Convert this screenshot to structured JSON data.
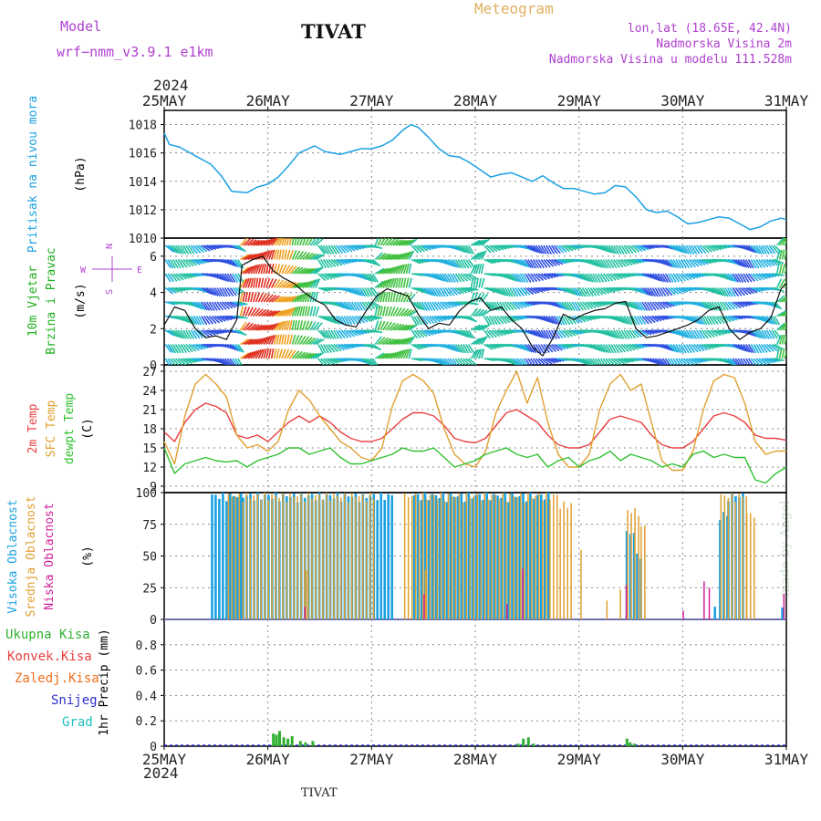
{
  "header": {
    "model_label": "Model",
    "model_name": "wrf−nmm_v3.9.1  e1km",
    "station": "TIVAT",
    "product": "Meteogram",
    "coords": "lon,lat (18.65E, 42.4N)",
    "elevation": "Nadmorska Visina 2m",
    "model_elevation": "Nadmorska Visina u modelu 111.528m",
    "year_top": "2024",
    "year_bottom": "2024",
    "footer_station": "TIVAT",
    "watermark": "made by Angel"
  },
  "colors": {
    "pressure": "#1ba1e2",
    "temp2m": "#e84040",
    "sfc": "#e0a030",
    "dewpt": "#30c030",
    "high_cloud": "#1ba1e2",
    "mid_cloud": "#e0a030",
    "low_cloud": "#d0209a",
    "total_precip": "#30b030",
    "conv_precip": "#e84040",
    "frozen": "#f07020",
    "snow": "#3030d0",
    "graupel": "#20c0c0",
    "magenta": "#b040d0",
    "grid": "#888888"
  },
  "chart_data": [
    {
      "type": "line",
      "panel": "pressure",
      "title": "Pritisak na nivou mora",
      "ylabel": "(hPa)",
      "categories": [
        "25MAY",
        "26MAY",
        "27MAY",
        "28MAY",
        "29MAY",
        "30MAY",
        "31MAY"
      ],
      "ylim": [
        1010,
        1019
      ],
      "yticks": [
        1010,
        1012,
        1014,
        1016,
        1018
      ],
      "series": [
        {
          "name": "",
          "x": [
            0,
            0.05,
            0.15,
            0.3,
            0.45,
            0.55,
            0.65,
            0.8,
            0.9,
            1.0,
            1.1,
            1.2,
            1.3,
            1.45,
            1.55,
            1.7,
            1.8,
            1.9,
            2.0,
            2.1,
            2.2,
            2.3,
            2.38,
            2.45,
            2.55,
            2.65,
            2.75,
            2.85,
            2.95,
            3.05,
            3.15,
            3.25,
            3.35,
            3.45,
            3.55,
            3.65,
            3.75,
            3.85,
            3.95,
            4.05,
            4.15,
            4.25,
            4.35,
            4.45,
            4.55,
            4.65,
            4.75,
            4.85,
            4.95,
            5.05,
            5.15,
            5.25,
            5.35,
            5.45,
            5.55,
            5.65,
            5.75,
            5.85,
            5.95,
            6.0
          ],
          "y": [
            1017.4,
            1016.6,
            1016.4,
            1015.8,
            1015.2,
            1014.4,
            1013.3,
            1013.2,
            1013.6,
            1013.8,
            1014.3,
            1015.1,
            1016.0,
            1016.5,
            1016.1,
            1015.9,
            1016.1,
            1016.3,
            1016.3,
            1016.5,
            1016.9,
            1017.6,
            1018.0,
            1017.8,
            1017.1,
            1016.3,
            1015.8,
            1015.7,
            1015.3,
            1014.8,
            1014.3,
            1014.5,
            1014.6,
            1014.3,
            1014.0,
            1014.4,
            1013.9,
            1013.5,
            1013.5,
            1013.3,
            1013.1,
            1013.2,
            1013.7,
            1013.6,
            1012.9,
            1012.0,
            1011.8,
            1011.9,
            1011.5,
            1011.0,
            1011.1,
            1011.3,
            1011.5,
            1011.4,
            1011.0,
            1010.6,
            1010.8,
            1011.2,
            1011.4,
            1011.3
          ]
        }
      ]
    },
    {
      "type": "line",
      "panel": "wind",
      "title": "10m Vjetar Brzina i Pravac",
      "ylabel": "(m/s)",
      "compass": {
        "north": "N",
        "west": "W",
        "east": "E",
        "south": "S"
      },
      "categories": [
        "25MAY",
        "26MAY",
        "27MAY",
        "28MAY",
        "29MAY",
        "30MAY",
        "31MAY"
      ],
      "ylim": [
        0,
        7
      ],
      "yticks": [
        0,
        2,
        4,
        6
      ],
      "series": [
        {
          "name": "",
          "x": [
            0,
            0.1,
            0.2,
            0.3,
            0.4,
            0.5,
            0.6,
            0.7,
            0.75,
            0.85,
            0.95,
            1.05,
            1.15,
            1.25,
            1.35,
            1.45,
            1.55,
            1.65,
            1.75,
            1.85,
            1.95,
            2.05,
            2.15,
            2.25,
            2.35,
            2.45,
            2.55,
            2.65,
            2.75,
            2.85,
            2.95,
            3.05,
            3.15,
            3.25,
            3.35,
            3.45,
            3.55,
            3.65,
            3.75,
            3.85,
            3.95,
            4.05,
            4.15,
            4.25,
            4.35,
            4.45,
            4.55,
            4.65,
            4.75,
            4.85,
            4.95,
            5.05,
            5.15,
            5.25,
            5.35,
            5.45,
            5.55,
            5.65,
            5.75,
            5.85,
            5.95,
            6.0
          ],
          "y": [
            2.2,
            3.2,
            3.0,
            2.0,
            1.5,
            1.6,
            1.4,
            2.5,
            5.5,
            5.8,
            6.0,
            5.2,
            4.8,
            4.5,
            4.0,
            3.6,
            3.3,
            2.5,
            2.2,
            2.1,
            3.0,
            3.8,
            4.2,
            4.0,
            3.8,
            2.8,
            2.0,
            2.3,
            2.2,
            3.0,
            3.5,
            3.7,
            3.0,
            3.2,
            2.5,
            2.0,
            1.0,
            0.5,
            1.5,
            2.8,
            2.5,
            2.8,
            3.0,
            3.1,
            3.4,
            3.5,
            2.0,
            1.5,
            1.6,
            1.8,
            2.0,
            2.2,
            2.5,
            3.0,
            3.2,
            2.0,
            1.4,
            1.8,
            2.0,
            2.6,
            4.2,
            4.5
          ]
        }
      ]
    },
    {
      "type": "line",
      "panel": "temperature",
      "ylabel": "(C)",
      "labels": [
        "2m Temp",
        "SFC Temp",
        "dewpt Temp"
      ],
      "categories": [
        "25MAY",
        "26MAY",
        "27MAY",
        "28MAY",
        "29MAY",
        "30MAY",
        "31MAY"
      ],
      "ylim": [
        8,
        28
      ],
      "yticks": [
        9,
        12,
        15,
        18,
        21,
        24,
        27
      ],
      "x": [
        0,
        0.1,
        0.2,
        0.3,
        0.4,
        0.5,
        0.6,
        0.7,
        0.8,
        0.9,
        1.0,
        1.1,
        1.2,
        1.3,
        1.4,
        1.5,
        1.6,
        1.7,
        1.8,
        1.9,
        2.0,
        2.1,
        2.2,
        2.3,
        2.4,
        2.5,
        2.6,
        2.7,
        2.8,
        2.9,
        3.0,
        3.1,
        3.2,
        3.3,
        3.4,
        3.5,
        3.6,
        3.7,
        3.8,
        3.9,
        4.0,
        4.1,
        4.2,
        4.3,
        4.4,
        4.5,
        4.6,
        4.7,
        4.8,
        4.9,
        5.0,
        5.1,
        5.2,
        5.3,
        5.4,
        5.5,
        5.6,
        5.7,
        5.8,
        5.9,
        6.0
      ],
      "series": [
        {
          "name": "2m Temp",
          "values": [
            17.5,
            16.0,
            19.0,
            21.0,
            22.0,
            21.5,
            20.5,
            17.0,
            16.5,
            17.0,
            16.0,
            17.5,
            19.0,
            20.0,
            19.0,
            20.0,
            19.0,
            17.5,
            16.5,
            16.0,
            16.0,
            16.5,
            18.0,
            19.5,
            20.5,
            20.5,
            20.0,
            18.5,
            16.5,
            16.0,
            15.8,
            16.5,
            18.5,
            20.5,
            21.0,
            20.0,
            19.0,
            17.0,
            15.5,
            15.0,
            15.0,
            15.5,
            17.5,
            19.5,
            20.0,
            19.5,
            19.0,
            17.0,
            15.5,
            15.0,
            15.0,
            16.0,
            18.0,
            20.0,
            20.5,
            20.0,
            19.0,
            17.0,
            16.5,
            16.5,
            16.2
          ]
        },
        {
          "name": "SFC Temp",
          "values": [
            16.0,
            12.5,
            20.0,
            25.0,
            26.5,
            25.0,
            23.0,
            17.0,
            15.0,
            15.5,
            14.5,
            16.0,
            21.0,
            24.0,
            22.5,
            20.0,
            18.0,
            16.0,
            15.0,
            13.5,
            13.0,
            15.0,
            21.5,
            25.5,
            26.5,
            25.5,
            23.5,
            18.0,
            14.0,
            12.5,
            12.0,
            14.5,
            20.5,
            24.0,
            27.0,
            22.0,
            26.0,
            19.0,
            14.0,
            12.0,
            12.0,
            14.0,
            21.0,
            25.0,
            26.5,
            24.0,
            25.0,
            19.0,
            13.0,
            11.5,
            11.5,
            14.5,
            21.0,
            25.5,
            26.5,
            26.0,
            22.0,
            16.0,
            14.0,
            14.5,
            14.5
          ]
        },
        {
          "name": "dewpt Temp",
          "values": [
            15.0,
            11.0,
            12.5,
            13.0,
            13.5,
            13.0,
            12.8,
            13.0,
            12.0,
            13.0,
            13.5,
            14.0,
            15.0,
            15.0,
            14.0,
            14.5,
            15.0,
            13.5,
            12.5,
            12.5,
            13.0,
            13.5,
            14.0,
            15.0,
            14.5,
            14.5,
            15.0,
            13.5,
            12.0,
            12.5,
            13.0,
            14.0,
            14.5,
            15.0,
            14.0,
            13.5,
            14.0,
            12.0,
            13.0,
            13.5,
            12.0,
            13.0,
            13.5,
            14.5,
            13.0,
            14.0,
            13.5,
            13.0,
            12.0,
            12.5,
            12.0,
            14.0,
            14.5,
            13.5,
            14.0,
            13.5,
            13.5,
            10.0,
            9.5,
            11.0,
            12.0
          ]
        }
      ]
    },
    {
      "type": "bar",
      "panel": "cloud",
      "ylabel": "(%)",
      "labels": [
        "Visoka Oblacnost",
        "Srednja Oblacnost",
        "Niska Oblacnost"
      ],
      "categories": [
        "25MAY",
        "26MAY",
        "27MAY",
        "28MAY",
        "29MAY",
        "30MAY",
        "31MAY"
      ],
      "ylim": [
        0,
        100
      ],
      "yticks": [
        0,
        25,
        50,
        75,
        100
      ],
      "series": [
        {
          "name": "Visoka Oblacnost",
          "segments": [
            [
              0.45,
              0.75,
              100
            ],
            [
              0.75,
              2.2,
              100
            ],
            [
              2.4,
              3.7,
              100
            ],
            [
              4.45,
              4.55,
              70
            ],
            [
              4.55,
              4.6,
              52
            ],
            [
              5.35,
              5.43,
              85
            ],
            [
              5.43,
              5.58,
              100
            ],
            [
              5.3,
              5.32,
              10
            ],
            [
              5.95,
              5.97,
              10
            ]
          ]
        },
        {
          "name": "Srednja Oblacnost",
          "segments": [
            [
              0.6,
              2.0,
              100
            ],
            [
              2.3,
              3.8,
              100
            ],
            [
              3.8,
              3.93,
              93
            ],
            [
              4.45,
              4.58,
              88
            ],
            [
              4.58,
              4.62,
              75
            ],
            [
              5.35,
              5.6,
              100
            ],
            [
              5.6,
              5.7,
              85
            ],
            [
              4.25,
              4.27,
              15
            ],
            [
              4.38,
              4.4,
              25
            ],
            [
              4.0,
              4.02,
              55
            ],
            [
              2.5,
              2.52,
              40
            ],
            [
              1.35,
              1.37,
              40
            ]
          ]
        },
        {
          "name": "Niska Oblacnost",
          "spikes": [
            [
              3.45,
              40
            ],
            [
              3.3,
              12
            ],
            [
              4.45,
              27
            ],
            [
              5.2,
              30
            ],
            [
              5.25,
              25
            ],
            [
              5.97,
              20
            ],
            [
              1.35,
              10
            ],
            [
              2.5,
              20
            ],
            [
              5.0,
              7
            ]
          ]
        }
      ]
    },
    {
      "type": "bar",
      "panel": "precipitation",
      "ylabel": "1hr Precip (mm)",
      "labels": [
        "Ukupna Kisa",
        "Konvek.Kisa",
        "Zaledj.Kisa",
        "Snijeg",
        "Grad"
      ],
      "categories": [
        "25MAY",
        "26MAY",
        "27MAY",
        "28MAY",
        "29MAY",
        "30MAY",
        "31MAY"
      ],
      "ylim": [
        0,
        1.0
      ],
      "yticks": [
        0,
        0.2,
        0.4,
        0.6,
        0.8
      ],
      "series": [
        {
          "name": "Ukupna Kisa",
          "x": [
            1.04,
            1.07,
            1.1,
            1.14,
            1.18,
            1.22,
            1.3,
            1.35,
            1.42,
            3.4,
            3.45,
            3.5,
            3.55,
            4.45,
            4.48,
            4.52
          ],
          "values": [
            0.1,
            0.09,
            0.12,
            0.07,
            0.06,
            0.08,
            0.04,
            0.03,
            0.04,
            0.02,
            0.06,
            0.07,
            0.02,
            0.06,
            0.03,
            0.02
          ]
        }
      ]
    }
  ]
}
